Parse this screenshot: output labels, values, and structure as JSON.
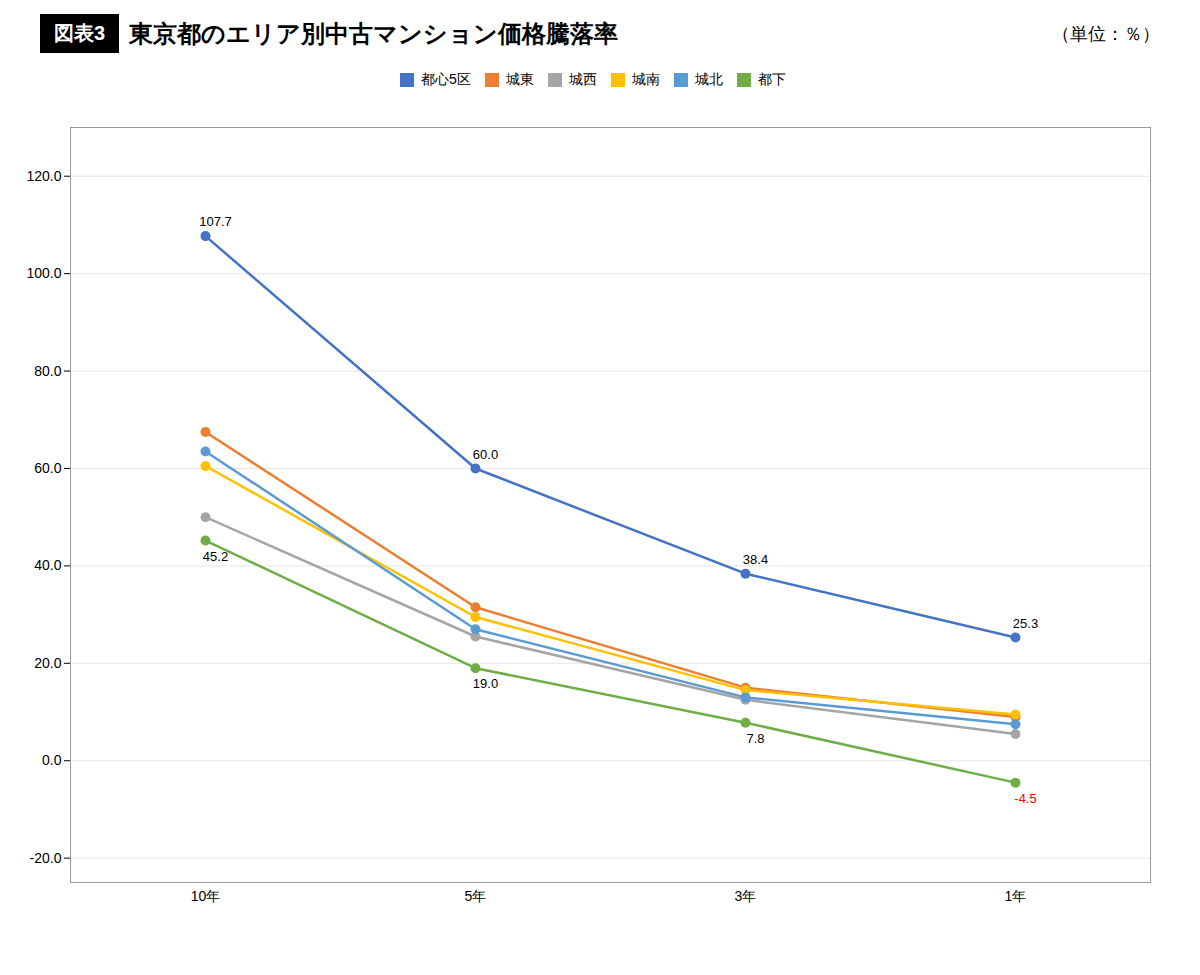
{
  "chart_data": {
    "type": "line",
    "title": "東京都のエリア別中古マンション価格騰落率",
    "subtitle": "（単位：％）",
    "annotations": [
      "図表3"
    ],
    "categories": [
      "10年",
      "5年",
      "3年",
      "1年"
    ],
    "series": [
      {
        "name": "都心5区",
        "color": "#4472C4",
        "values": [
          107.7,
          60.0,
          38.4,
          25.3
        ],
        "data_labels": true,
        "value_labels": [
          "107.7",
          "60.0",
          "38.4",
          "25.3"
        ]
      },
      {
        "name": "城東",
        "color": "#ED7D31",
        "values": [
          67.5,
          31.5,
          15.0,
          9.0
        ]
      },
      {
        "name": "城西",
        "color": "#A5A5A5",
        "values": [
          50.0,
          25.5,
          12.5,
          5.5
        ]
      },
      {
        "name": "城南",
        "color": "#FFC000",
        "values": [
          60.5,
          29.5,
          14.5,
          9.5
        ]
      },
      {
        "name": "城北",
        "color": "#5B9BD5",
        "values": [
          63.5,
          27.0,
          13.0,
          7.5
        ]
      },
      {
        "name": "都下",
        "color": "#70AD47",
        "values": [
          45.2,
          19.0,
          7.8,
          -4.5
        ],
        "data_labels": true,
        "value_labels": [
          "45.2",
          "19.0",
          "7.8",
          "-4.5"
        ]
      }
    ],
    "ylim": [
      -25.0,
      130.0
    ],
    "yticks": [
      {
        "value": -20,
        "label": "-20.0"
      },
      {
        "value": 0,
        "label": "0.0"
      },
      {
        "value": 20,
        "label": "20.0"
      },
      {
        "value": 40,
        "label": "40.0"
      },
      {
        "value": 60,
        "label": "60.0"
      },
      {
        "value": 80,
        "label": "80.0"
      },
      {
        "value": 100,
        "label": "100.0"
      },
      {
        "value": 120,
        "label": "120.0"
      }
    ],
    "grid": true,
    "legend": "top",
    "marker": "circle"
  }
}
